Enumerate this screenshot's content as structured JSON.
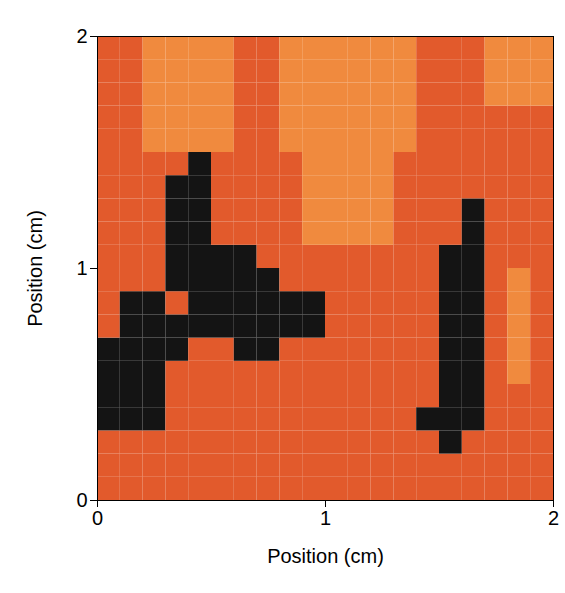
{
  "chart_data": {
    "type": "heatmap",
    "xlabel": "Position (cm)",
    "ylabel": "Position (cm)",
    "xlim": [
      0,
      2
    ],
    "ylim": [
      0,
      2
    ],
    "xticks": [
      0,
      1,
      2
    ],
    "yticks": [
      0,
      1,
      2
    ],
    "colors": [
      "#e25a2c",
      "#f08a3e",
      "#141414"
    ],
    "cells": [
      [
        0,
        0,
        0,
        0,
        0,
        0,
        0,
        0,
        0,
        0,
        0,
        0,
        0,
        0,
        0,
        0,
        0,
        0,
        0,
        0
      ],
      [
        0,
        0,
        0,
        0,
        0,
        0,
        0,
        0,
        0,
        0,
        0,
        0,
        0,
        0,
        0,
        0,
        0,
        0,
        0,
        0
      ],
      [
        0,
        0,
        0,
        0,
        0,
        0,
        0,
        0,
        0,
        0,
        0,
        0,
        0,
        0,
        0,
        2,
        0,
        0,
        0,
        0
      ],
      [
        2,
        2,
        2,
        0,
        0,
        0,
        0,
        0,
        0,
        0,
        0,
        0,
        0,
        0,
        2,
        2,
        2,
        0,
        0,
        0
      ],
      [
        2,
        2,
        2,
        0,
        0,
        0,
        0,
        0,
        0,
        0,
        0,
        0,
        0,
        0,
        0,
        2,
        2,
        0,
        0,
        0
      ],
      [
        2,
        2,
        2,
        0,
        0,
        0,
        0,
        0,
        0,
        0,
        0,
        0,
        0,
        0,
        0,
        2,
        2,
        0,
        1,
        0
      ],
      [
        2,
        2,
        2,
        2,
        0,
        0,
        2,
        2,
        0,
        0,
        0,
        0,
        0,
        0,
        0,
        2,
        2,
        0,
        1,
        0
      ],
      [
        0,
        2,
        2,
        2,
        2,
        2,
        2,
        2,
        2,
        2,
        0,
        0,
        0,
        0,
        0,
        2,
        2,
        0,
        1,
        0
      ],
      [
        0,
        2,
        2,
        0,
        2,
        2,
        2,
        2,
        2,
        2,
        0,
        0,
        0,
        0,
        0,
        2,
        2,
        0,
        1,
        0
      ],
      [
        0,
        0,
        0,
        2,
        2,
        2,
        2,
        2,
        0,
        0,
        0,
        0,
        0,
        0,
        0,
        2,
        2,
        0,
        1,
        0
      ],
      [
        0,
        0,
        0,
        2,
        2,
        2,
        2,
        0,
        0,
        0,
        0,
        0,
        0,
        0,
        0,
        2,
        2,
        0,
        0,
        0
      ],
      [
        0,
        0,
        0,
        2,
        2,
        0,
        0,
        0,
        0,
        1,
        1,
        1,
        1,
        0,
        0,
        0,
        2,
        0,
        0,
        0
      ],
      [
        0,
        0,
        0,
        2,
        2,
        0,
        0,
        0,
        0,
        1,
        1,
        1,
        1,
        0,
        0,
        0,
        2,
        0,
        0,
        0
      ],
      [
        0,
        0,
        0,
        2,
        2,
        0,
        0,
        0,
        0,
        1,
        1,
        1,
        1,
        0,
        0,
        0,
        0,
        0,
        0,
        0
      ],
      [
        0,
        0,
        0,
        0,
        2,
        0,
        0,
        0,
        0,
        1,
        1,
        1,
        1,
        0,
        0,
        0,
        0,
        0,
        0,
        0
      ],
      [
        0,
        0,
        1,
        1,
        1,
        1,
        0,
        0,
        1,
        1,
        1,
        1,
        1,
        1,
        0,
        0,
        0,
        0,
        0,
        0
      ],
      [
        0,
        0,
        1,
        1,
        1,
        1,
        0,
        0,
        1,
        1,
        1,
        1,
        1,
        1,
        0,
        0,
        0,
        0,
        0,
        0
      ],
      [
        0,
        0,
        1,
        1,
        1,
        1,
        0,
        0,
        1,
        1,
        1,
        1,
        1,
        1,
        0,
        0,
        0,
        1,
        1,
        1
      ],
      [
        0,
        0,
        1,
        1,
        1,
        1,
        0,
        0,
        1,
        1,
        1,
        1,
        1,
        1,
        0,
        0,
        0,
        1,
        1,
        1
      ],
      [
        0,
        0,
        1,
        1,
        1,
        1,
        0,
        0,
        1,
        1,
        1,
        1,
        1,
        1,
        0,
        0,
        0,
        1,
        1,
        1
      ]
    ]
  }
}
